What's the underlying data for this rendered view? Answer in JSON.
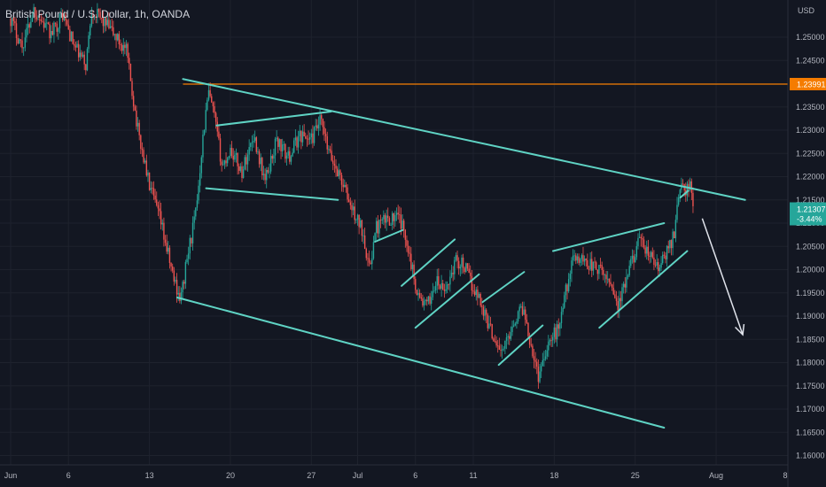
{
  "header": {
    "symbol_title": "British Pound / U.S. Dollar, 1h, OANDA"
  },
  "price_axis": {
    "currency": "USD",
    "tick_labels": [
      "1.25000",
      "1.24500",
      "1.24000",
      "1.23500",
      "1.23000",
      "1.22500",
      "1.22000",
      "1.21500",
      "1.21000",
      "1.20500",
      "1.20000",
      "1.19500",
      "1.19000",
      "1.18500",
      "1.18000",
      "1.17500",
      "1.17000",
      "1.16500",
      "1.16000"
    ]
  },
  "price_tags": {
    "resistance": {
      "value": "1.23991",
      "color": "#f57c00"
    },
    "last": {
      "value": "1.21307",
      "change": "-3.44%",
      "color": "#26a69a"
    }
  },
  "colors": {
    "background": "#131722",
    "up": "#26a69a",
    "down": "#ef5350",
    "trendline": "#5fd3c4",
    "horizontal": "#f57c00",
    "arrow": "#e0e3eb"
  },
  "chart_data": {
    "type": "candlestick",
    "symbol": "GBPUSD",
    "timeframe": "1h",
    "ylim": [
      1.158,
      1.258
    ],
    "y_ticks": [
      1.25,
      1.245,
      1.24,
      1.235,
      1.23,
      1.225,
      1.22,
      1.215,
      1.21,
      1.205,
      1.2,
      1.195,
      1.19,
      1.185,
      1.18,
      1.175,
      1.17,
      1.165,
      1.16
    ],
    "xlim": [
      0,
      63.5
    ],
    "x_ticks": [
      {
        "d": 0,
        "label": "Jun"
      },
      {
        "d": 5,
        "label": "6"
      },
      {
        "d": 12,
        "label": "13"
      },
      {
        "d": 19,
        "label": "20"
      },
      {
        "d": 26,
        "label": "27"
      },
      {
        "d": 30,
        "label": "Jul"
      },
      {
        "d": 35,
        "label": "6"
      },
      {
        "d": 40,
        "label": "11"
      },
      {
        "d": 47,
        "label": "18"
      },
      {
        "d": 54,
        "label": "25"
      },
      {
        "d": 61,
        "label": "Aug"
      },
      {
        "d": 68,
        "label": "8"
      }
    ],
    "price_path": [
      [
        0,
        1.254
      ],
      [
        1.0,
        1.248
      ],
      [
        2.0,
        1.256
      ],
      [
        3.5,
        1.2505
      ],
      [
        4.5,
        1.255
      ],
      [
        5.5,
        1.248
      ],
      [
        6.5,
        1.244
      ],
      [
        7.0,
        1.256
      ],
      [
        8.5,
        1.252
      ],
      [
        10.0,
        1.247
      ],
      [
        11.0,
        1.23
      ],
      [
        12.0,
        1.218
      ],
      [
        13.0,
        1.21
      ],
      [
        14.0,
        1.199
      ],
      [
        14.7,
        1.1935
      ],
      [
        15.3,
        1.203
      ],
      [
        16.0,
        1.212
      ],
      [
        16.6,
        1.228
      ],
      [
        17.1,
        1.238
      ],
      [
        17.6,
        1.233
      ],
      [
        18.3,
        1.222
      ],
      [
        19.0,
        1.226
      ],
      [
        20.0,
        1.221
      ],
      [
        21.0,
        1.229
      ],
      [
        22.0,
        1.219
      ],
      [
        23.0,
        1.228
      ],
      [
        24.0,
        1.224
      ],
      [
        25.0,
        1.229
      ],
      [
        26.0,
        1.228
      ],
      [
        26.8,
        1.232
      ],
      [
        27.5,
        1.225
      ],
      [
        28.5,
        1.22
      ],
      [
        29.5,
        1.213
      ],
      [
        30.5,
        1.208
      ],
      [
        31.0,
        1.2
      ],
      [
        31.6,
        1.209
      ],
      [
        32.6,
        1.211
      ],
      [
        33.6,
        1.211
      ],
      [
        34.3,
        1.206
      ],
      [
        34.8,
        1.199
      ],
      [
        35.3,
        1.194
      ],
      [
        36.0,
        1.192
      ],
      [
        36.8,
        1.1975
      ],
      [
        37.5,
        1.195
      ],
      [
        38.5,
        1.202
      ],
      [
        39.2,
        1.201
      ],
      [
        39.8,
        1.197
      ],
      [
        40.5,
        1.194
      ],
      [
        41.5,
        1.187
      ],
      [
        42.5,
        1.182
      ],
      [
        43.5,
        1.189
      ],
      [
        44.3,
        1.192
      ],
      [
        45.0,
        1.184
      ],
      [
        45.6,
        1.177
      ],
      [
        46.4,
        1.184
      ],
      [
        47.3,
        1.187
      ],
      [
        48.3,
        1.199
      ],
      [
        48.8,
        1.203
      ],
      [
        49.6,
        1.202
      ],
      [
        50.8,
        1.2
      ],
      [
        52.0,
        1.197
      ],
      [
        52.5,
        1.192
      ],
      [
        53.3,
        1.198
      ],
      [
        54.2,
        1.206
      ],
      [
        55.0,
        1.204
      ],
      [
        56.0,
        1.2
      ],
      [
        56.8,
        1.204
      ],
      [
        57.4,
        1.208
      ],
      [
        57.8,
        1.218
      ],
      [
        58.3,
        1.217
      ],
      [
        58.8,
        1.218
      ],
      [
        59.0,
        1.213
      ]
    ],
    "drawings": {
      "horizontal_line": 1.23991,
      "trendlines": [
        {
          "name": "channel-top",
          "p1": [
            14.9,
            1.241
          ],
          "p2": [
            63.5,
            1.215
          ]
        },
        {
          "name": "channel-bottom",
          "p1": [
            14.4,
            1.194
          ],
          "p2": [
            56.5,
            1.166
          ]
        },
        {
          "name": "flag-upper",
          "p1": [
            17.8,
            1.231
          ],
          "p2": [
            27.7,
            1.234
          ]
        },
        {
          "name": "flag-lower",
          "p1": [
            16.9,
            1.2175
          ],
          "p2": [
            28.3,
            1.215
          ]
        },
        {
          "name": "pullback-small",
          "p1": [
            31.5,
            1.206
          ],
          "p2": [
            33.9,
            1.2085
          ]
        },
        {
          "name": "wave-a",
          "p1": [
            33.8,
            1.1965
          ],
          "p2": [
            38.4,
            1.2065
          ]
        },
        {
          "name": "wave-b",
          "p1": [
            35.0,
            1.1875
          ],
          "p2": [
            40.5,
            1.199
          ]
        },
        {
          "name": "wave-c",
          "p1": [
            40.8,
            1.193
          ],
          "p2": [
            44.4,
            1.1995
          ]
        },
        {
          "name": "wave-d",
          "p1": [
            42.2,
            1.1795
          ],
          "p2": [
            46.0,
            1.188
          ]
        },
        {
          "name": "wedge-upper",
          "p1": [
            46.9,
            1.204
          ],
          "p2": [
            56.5,
            1.21
          ]
        },
        {
          "name": "wedge-lower",
          "p1": [
            50.9,
            1.1875
          ],
          "p2": [
            58.5,
            1.204
          ]
        },
        {
          "name": "last-leg",
          "p1": [
            57.9,
            1.2155
          ],
          "p2": [
            58.6,
            1.217
          ]
        }
      ],
      "arrow": {
        "from": [
          59.8,
          1.211
        ],
        "to": [
          63.3,
          1.186
        ]
      }
    }
  }
}
